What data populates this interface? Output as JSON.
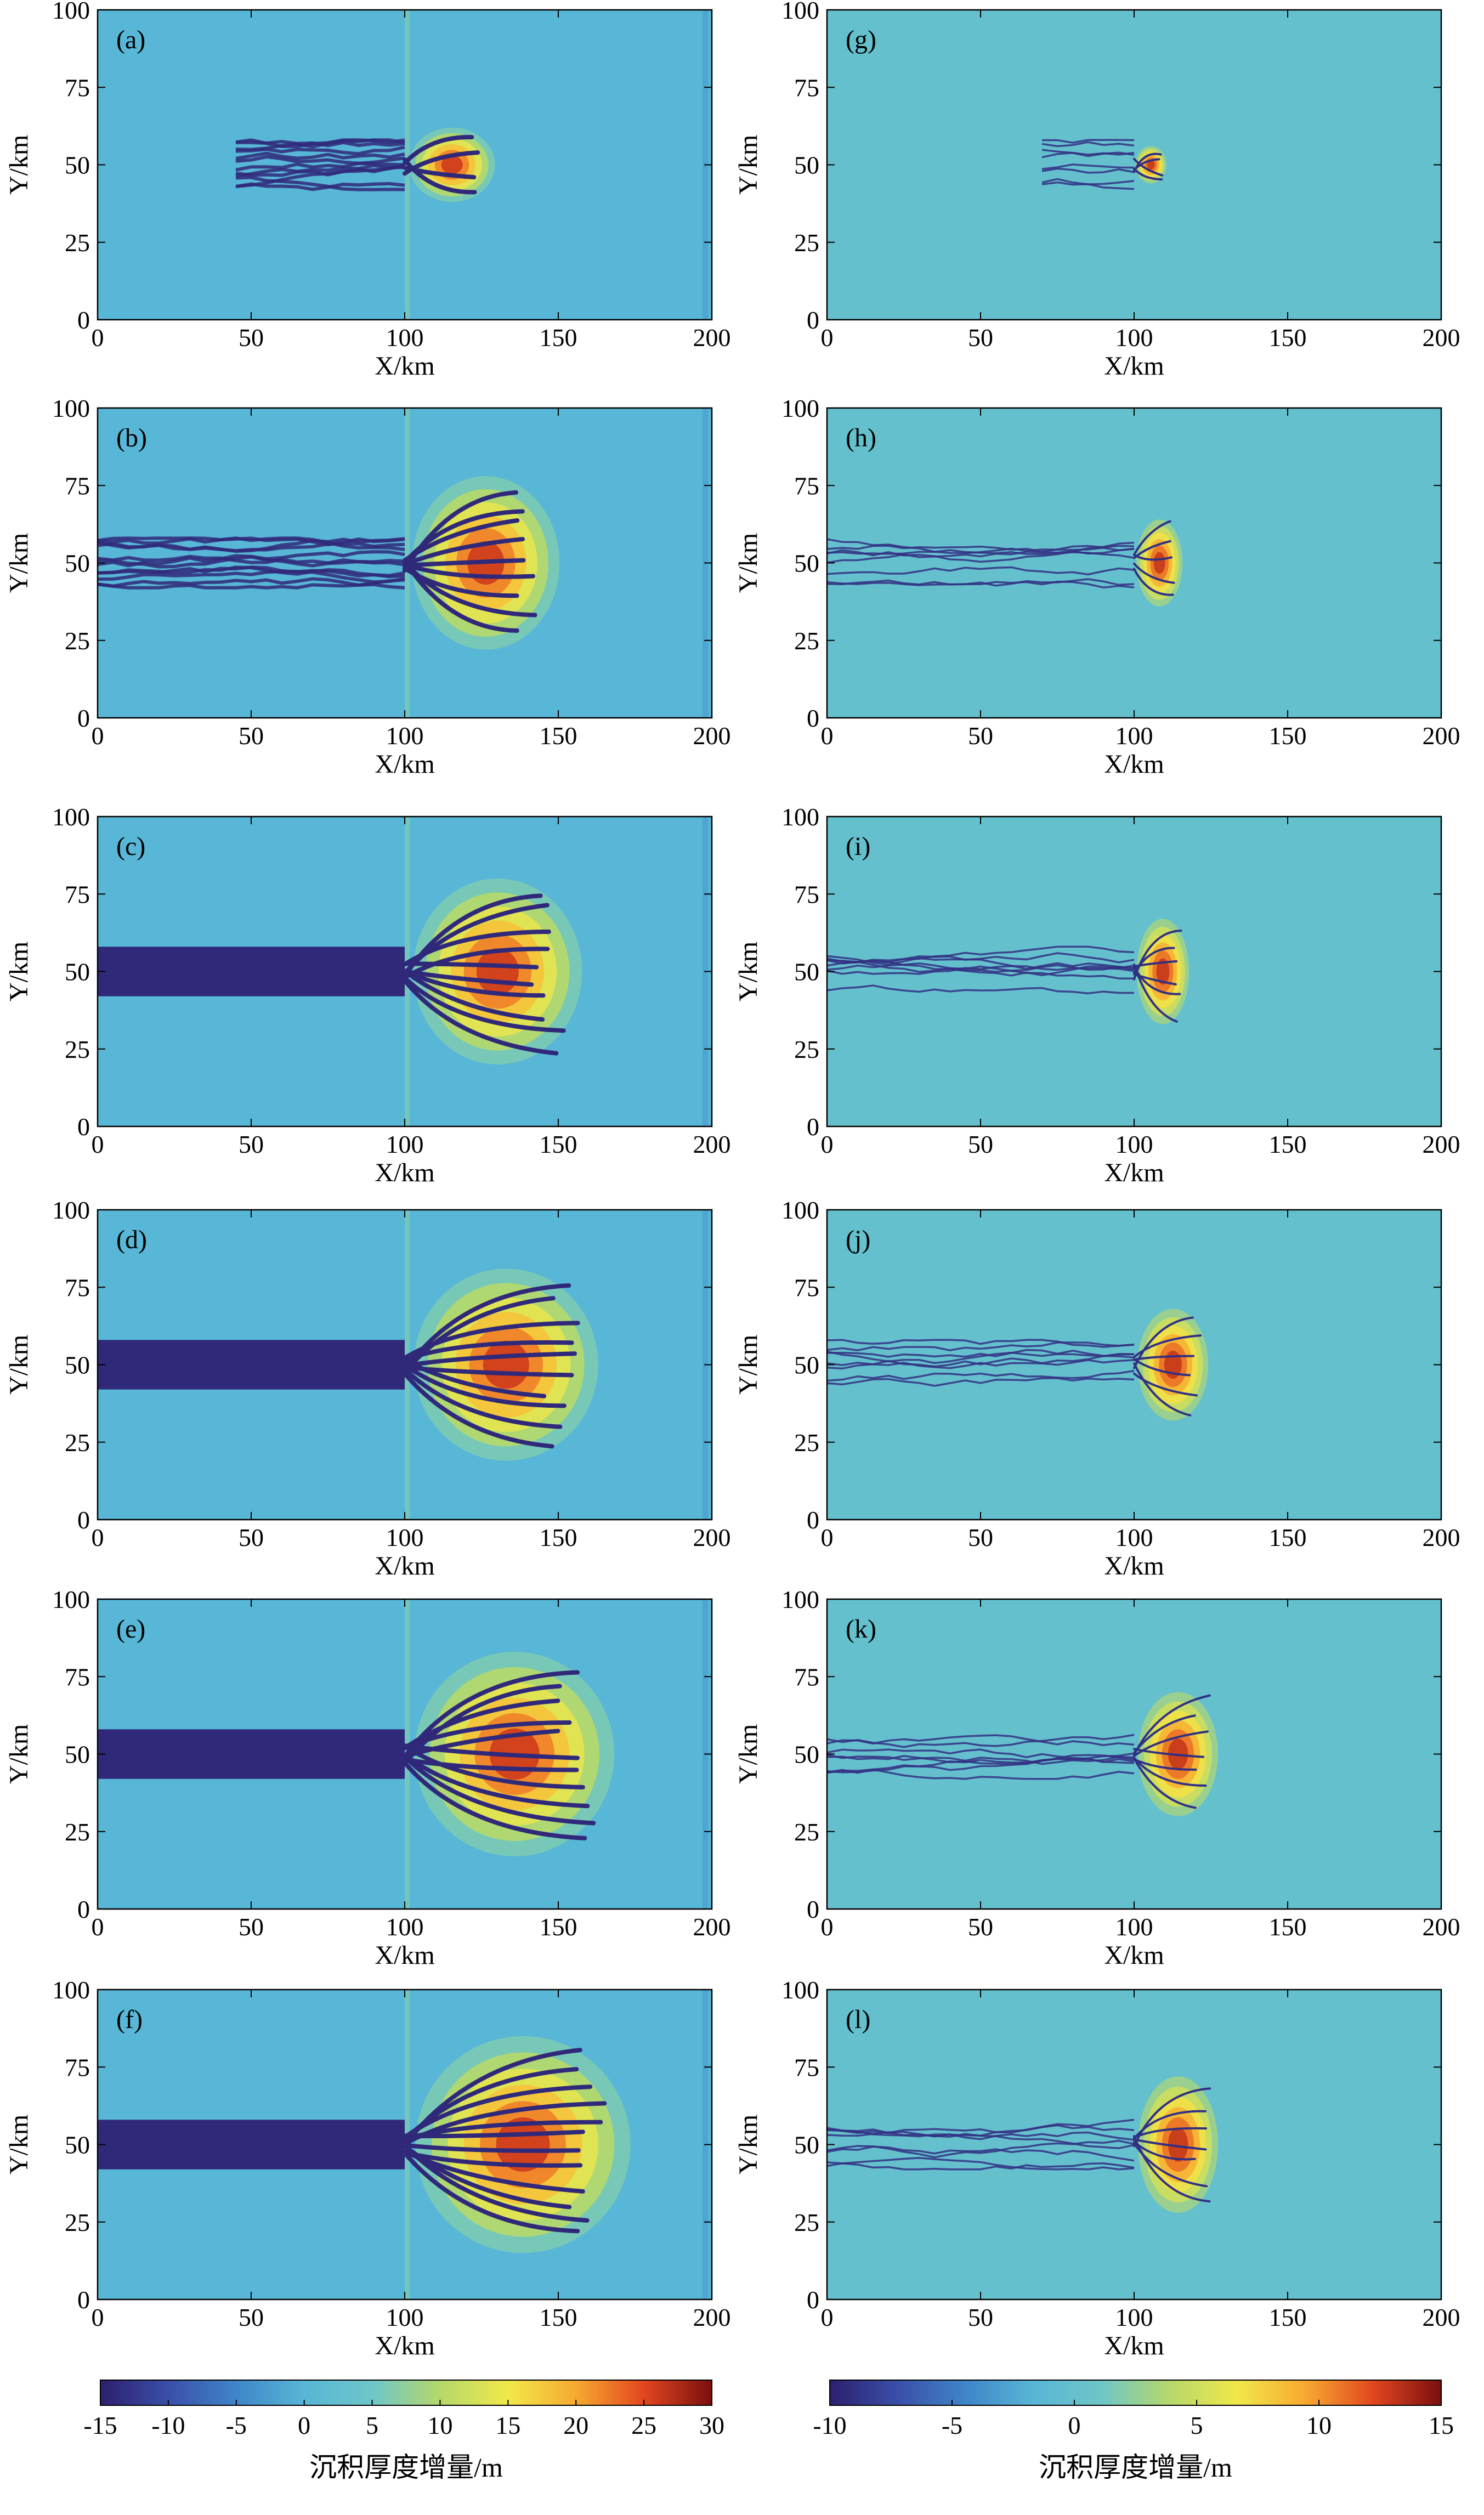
{
  "figure": {
    "colorbars": [
      {
        "id": "cb-left",
        "label": "沉积厚度增量/m",
        "min": -15,
        "max": 30,
        "ticks": [
          -15,
          -10,
          -5,
          0,
          5,
          10,
          15,
          20,
          25,
          30
        ]
      },
      {
        "id": "cb-right",
        "label": "沉积厚度增量/m",
        "min": -10,
        "max": 15,
        "ticks": [
          -10,
          -5,
          0,
          5,
          10,
          15
        ]
      }
    ],
    "colormap_stops": [
      "#2d1f6e",
      "#3a4fa8",
      "#3f85c8",
      "#58b6d6",
      "#6ec6c8",
      "#b5d86a",
      "#f1e84a",
      "#f7a930",
      "#e2461f",
      "#7a0f0f"
    ]
  },
  "chart_data": [
    {
      "panel": "(a)",
      "type": "heatmap",
      "xlabel": "X/km",
      "ylabel": "Y/km",
      "xlim": [
        0,
        200
      ],
      "ylim": [
        0,
        100
      ],
      "xticks": [
        0,
        50,
        100,
        150,
        200
      ],
      "yticks": [
        0,
        25,
        50,
        75,
        100
      ],
      "colorbar": "cb-left",
      "channel_start_km": 45,
      "lobe_front_km": 128,
      "lobe_halfwidth_km": 12,
      "erosion": "channels"
    },
    {
      "panel": "(b)",
      "type": "heatmap",
      "xlabel": "X/km",
      "ylabel": "Y/km",
      "xlim": [
        0,
        200
      ],
      "ylim": [
        0,
        100
      ],
      "xticks": [
        0,
        50,
        100,
        150,
        200
      ],
      "yticks": [
        0,
        25,
        50,
        75,
        100
      ],
      "colorbar": "cb-left",
      "channel_start_km": 0,
      "lobe_front_km": 148,
      "lobe_halfwidth_km": 28,
      "erosion": "channels"
    },
    {
      "panel": "(c)",
      "type": "heatmap",
      "xlabel": "X/km",
      "ylabel": "Y/km",
      "xlim": [
        0,
        200
      ],
      "ylim": [
        0,
        100
      ],
      "xticks": [
        0,
        50,
        100,
        150,
        200
      ],
      "yticks": [
        0,
        25,
        50,
        75,
        100
      ],
      "colorbar": "cb-left",
      "channel_start_km": 0,
      "lobe_front_km": 155,
      "lobe_halfwidth_km": 30,
      "erosion": "solid"
    },
    {
      "panel": "(d)",
      "type": "heatmap",
      "xlabel": "X/km",
      "ylabel": "Y/km",
      "xlim": [
        0,
        200
      ],
      "ylim": [
        0,
        100
      ],
      "xticks": [
        0,
        50,
        100,
        150,
        200
      ],
      "yticks": [
        0,
        25,
        50,
        75,
        100
      ],
      "colorbar": "cb-left",
      "channel_start_km": 0,
      "lobe_front_km": 160,
      "lobe_halfwidth_km": 31,
      "erosion": "solid"
    },
    {
      "panel": "(e)",
      "type": "heatmap",
      "xlabel": "X/km",
      "ylabel": "Y/km",
      "xlim": [
        0,
        200
      ],
      "ylim": [
        0,
        100
      ],
      "xticks": [
        0,
        50,
        100,
        150,
        200
      ],
      "yticks": [
        0,
        25,
        50,
        75,
        100
      ],
      "colorbar": "cb-left",
      "channel_start_km": 0,
      "lobe_front_km": 165,
      "lobe_halfwidth_km": 33,
      "erosion": "solid"
    },
    {
      "panel": "(f)",
      "type": "heatmap",
      "xlabel": "X/km",
      "ylabel": "Y/km",
      "xlim": [
        0,
        200
      ],
      "ylim": [
        0,
        100
      ],
      "xticks": [
        0,
        50,
        100,
        150,
        200
      ],
      "yticks": [
        0,
        25,
        50,
        75,
        100
      ],
      "colorbar": "cb-left",
      "channel_start_km": 0,
      "lobe_front_km": 170,
      "lobe_halfwidth_km": 35,
      "erosion": "solid"
    },
    {
      "panel": "(g)",
      "type": "heatmap",
      "xlabel": "X/km",
      "ylabel": "Y/km",
      "xlim": [
        0,
        200
      ],
      "ylim": [
        0,
        100
      ],
      "xticks": [
        0,
        50,
        100,
        150,
        200
      ],
      "yticks": [
        0,
        25,
        50,
        75,
        100
      ],
      "colorbar": "cb-right",
      "channel_start_km": 70,
      "lobe_front_km": 110,
      "lobe_halfwidth_km": 6,
      "erosion": "thin"
    },
    {
      "panel": "(h)",
      "type": "heatmap",
      "xlabel": "X/km",
      "ylabel": "Y/km",
      "xlim": [
        0,
        200
      ],
      "ylim": [
        0,
        100
      ],
      "xticks": [
        0,
        50,
        100,
        150,
        200
      ],
      "yticks": [
        0,
        25,
        50,
        75,
        100
      ],
      "colorbar": "cb-right",
      "channel_start_km": 0,
      "lobe_front_km": 115,
      "lobe_halfwidth_km": 14,
      "erosion": "thin"
    },
    {
      "panel": "(i)",
      "type": "heatmap",
      "xlabel": "X/km",
      "ylabel": "Y/km",
      "xlim": [
        0,
        200
      ],
      "ylim": [
        0,
        100
      ],
      "xticks": [
        0,
        50,
        100,
        150,
        200
      ],
      "yticks": [
        0,
        25,
        50,
        75,
        100
      ],
      "colorbar": "cb-right",
      "channel_start_km": 0,
      "lobe_front_km": 117,
      "lobe_halfwidth_km": 17,
      "erosion": "thin"
    },
    {
      "panel": "(j)",
      "type": "heatmap",
      "xlabel": "X/km",
      "ylabel": "Y/km",
      "xlim": [
        0,
        200
      ],
      "ylim": [
        0,
        100
      ],
      "xticks": [
        0,
        50,
        100,
        150,
        200
      ],
      "yticks": [
        0,
        25,
        50,
        75,
        100
      ],
      "colorbar": "cb-right",
      "channel_start_km": 0,
      "lobe_front_km": 123,
      "lobe_halfwidth_km": 18,
      "erosion": "thin"
    },
    {
      "panel": "(k)",
      "type": "heatmap",
      "xlabel": "X/km",
      "ylabel": "Y/km",
      "xlim": [
        0,
        200
      ],
      "ylim": [
        0,
        100
      ],
      "xticks": [
        0,
        50,
        100,
        150,
        200
      ],
      "yticks": [
        0,
        25,
        50,
        75,
        100
      ],
      "colorbar": "cb-right",
      "channel_start_km": 0,
      "lobe_front_km": 126,
      "lobe_halfwidth_km": 20,
      "erosion": "thin"
    },
    {
      "panel": "(l)",
      "type": "heatmap",
      "xlabel": "X/km",
      "ylabel": "Y/km",
      "xlim": [
        0,
        200
      ],
      "ylim": [
        0,
        100
      ],
      "xticks": [
        0,
        50,
        100,
        150,
        200
      ],
      "yticks": [
        0,
        25,
        50,
        75,
        100
      ],
      "colorbar": "cb-right",
      "channel_start_km": 0,
      "lobe_front_km": 126,
      "lobe_halfwidth_km": 22,
      "erosion": "thin"
    }
  ]
}
